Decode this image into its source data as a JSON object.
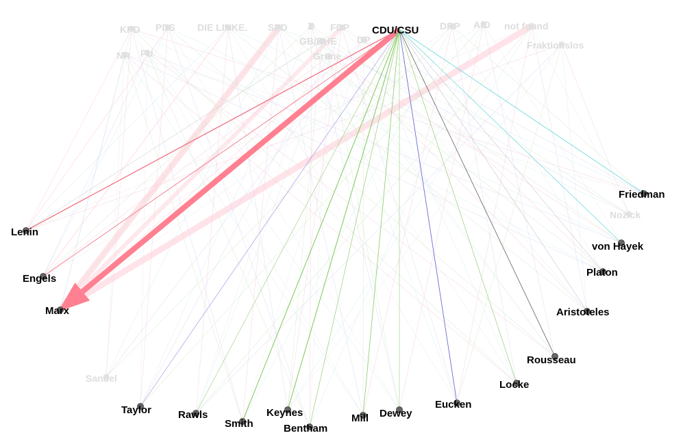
{
  "graph": {
    "source": {
      "id": "cdu",
      "label": "CDU/CSU"
    },
    "parties": [
      {
        "id": "kpd",
        "label": "KPD"
      },
      {
        "id": "pds",
        "label": "PDS"
      },
      {
        "id": "linke",
        "label": "DIE LINKE."
      },
      {
        "id": "spd",
        "label": "SPD"
      },
      {
        "id": "z",
        "label": "Z"
      },
      {
        "id": "fdp",
        "label": "FDP"
      },
      {
        "id": "drp",
        "label": "DRP"
      },
      {
        "id": "afd",
        "label": "AfD"
      },
      {
        "id": "notfound",
        "label": "not found"
      },
      {
        "id": "nr",
        "label": "NR"
      },
      {
        "id": "fu",
        "label": "FU"
      },
      {
        "id": "gbbhe",
        "label": "GB/BHE"
      },
      {
        "id": "dp",
        "label": "DP"
      },
      {
        "id": "gruene",
        "label": "Grüne"
      },
      {
        "id": "fraktionslos",
        "label": "Fraktionslos"
      }
    ],
    "thinkers": [
      {
        "id": "friedman",
        "label": "Friedman"
      },
      {
        "id": "nozick",
        "label": "Nozick"
      },
      {
        "id": "hayek",
        "label": "von Hayek"
      },
      {
        "id": "platon",
        "label": "Platon"
      },
      {
        "id": "aristoteles",
        "label": "Aristoteles"
      },
      {
        "id": "rousseau",
        "label": "Rousseau"
      },
      {
        "id": "locke",
        "label": "Locke"
      },
      {
        "id": "eucken",
        "label": "Eucken"
      },
      {
        "id": "dewey",
        "label": "Dewey"
      },
      {
        "id": "mill",
        "label": "Mill"
      },
      {
        "id": "keynes",
        "label": "Keynes"
      },
      {
        "id": "bentham",
        "label": "Bentham"
      },
      {
        "id": "smith",
        "label": "Smith"
      },
      {
        "id": "rawls",
        "label": "Rawls"
      },
      {
        "id": "taylor",
        "label": "Taylor"
      },
      {
        "id": "sandel",
        "label": "Sandel"
      },
      {
        "id": "lenin",
        "label": "Lenin"
      },
      {
        "id": "engels",
        "label": "Engels"
      },
      {
        "id": "marx",
        "label": "Marx"
      }
    ],
    "highlighted_edges": [
      {
        "from": "cdu",
        "to": "marx",
        "weight": 8,
        "color": "#ff8090"
      },
      {
        "from": "cdu",
        "to": "lenin",
        "weight": 1.4,
        "color": "#f07c8c"
      },
      {
        "from": "cdu",
        "to": "engels",
        "weight": 0.9,
        "color": "#f07c8c"
      },
      {
        "from": "cdu",
        "to": "eucken",
        "weight": 0.9,
        "color": "#6b6bd0"
      },
      {
        "from": "cdu",
        "to": "rousseau",
        "weight": 0.8,
        "color": "#606060"
      },
      {
        "from": "cdu",
        "to": "friedman",
        "weight": 0.8,
        "color": "#66d8d8"
      },
      {
        "from": "cdu",
        "to": "hayek",
        "weight": 0.7,
        "color": "#66d8d8"
      },
      {
        "from": "cdu",
        "to": "keynes",
        "weight": 1.1,
        "color": "#88cc66"
      },
      {
        "from": "cdu",
        "to": "smith",
        "weight": 1.1,
        "color": "#88cc66"
      },
      {
        "from": "cdu",
        "to": "mill",
        "weight": 0.8,
        "color": "#88cc66"
      },
      {
        "from": "cdu",
        "to": "bentham",
        "weight": 0.7,
        "color": "#99cc77"
      },
      {
        "from": "cdu",
        "to": "rawls",
        "weight": 0.6,
        "color": "#99cc77"
      },
      {
        "from": "cdu",
        "to": "dewey",
        "weight": 0.6,
        "color": "#99cc77"
      },
      {
        "from": "cdu",
        "to": "locke",
        "weight": 0.7,
        "color": "#99cc77"
      },
      {
        "from": "cdu",
        "to": "taylor",
        "weight": 0.6,
        "color": "#9a8ae0"
      },
      {
        "from": "cdu",
        "to": "aristoteles",
        "weight": 0.5,
        "color": "#b0b0c0"
      },
      {
        "from": "cdu",
        "to": "platon",
        "weight": 0.5,
        "color": "#b0b0c0"
      }
    ],
    "faded_edges": [
      {
        "from": "spd",
        "to": "marx",
        "weight": 9,
        "color": "#ffe0e6"
      },
      {
        "from": "notfound",
        "to": "marx",
        "weight": 9,
        "color": "#ffe0e6"
      },
      {
        "from": "fdp",
        "to": "marx",
        "weight": 6,
        "color": "#ffe6ea"
      },
      {
        "from": "linke",
        "to": "engels",
        "weight": 1.5,
        "color": "#ffe6ea"
      },
      {
        "from": "pds",
        "to": "lenin",
        "weight": 1.2,
        "color": "#ffe6ea"
      },
      {
        "from": "kpd",
        "to": "lenin",
        "weight": 1.0,
        "color": "#ffe6ea"
      }
    ],
    "colors": {
      "label_active": "#000000",
      "label_faded": "#dddddd",
      "node_active": "#666666",
      "node_faded": "#e6e6e6"
    }
  }
}
